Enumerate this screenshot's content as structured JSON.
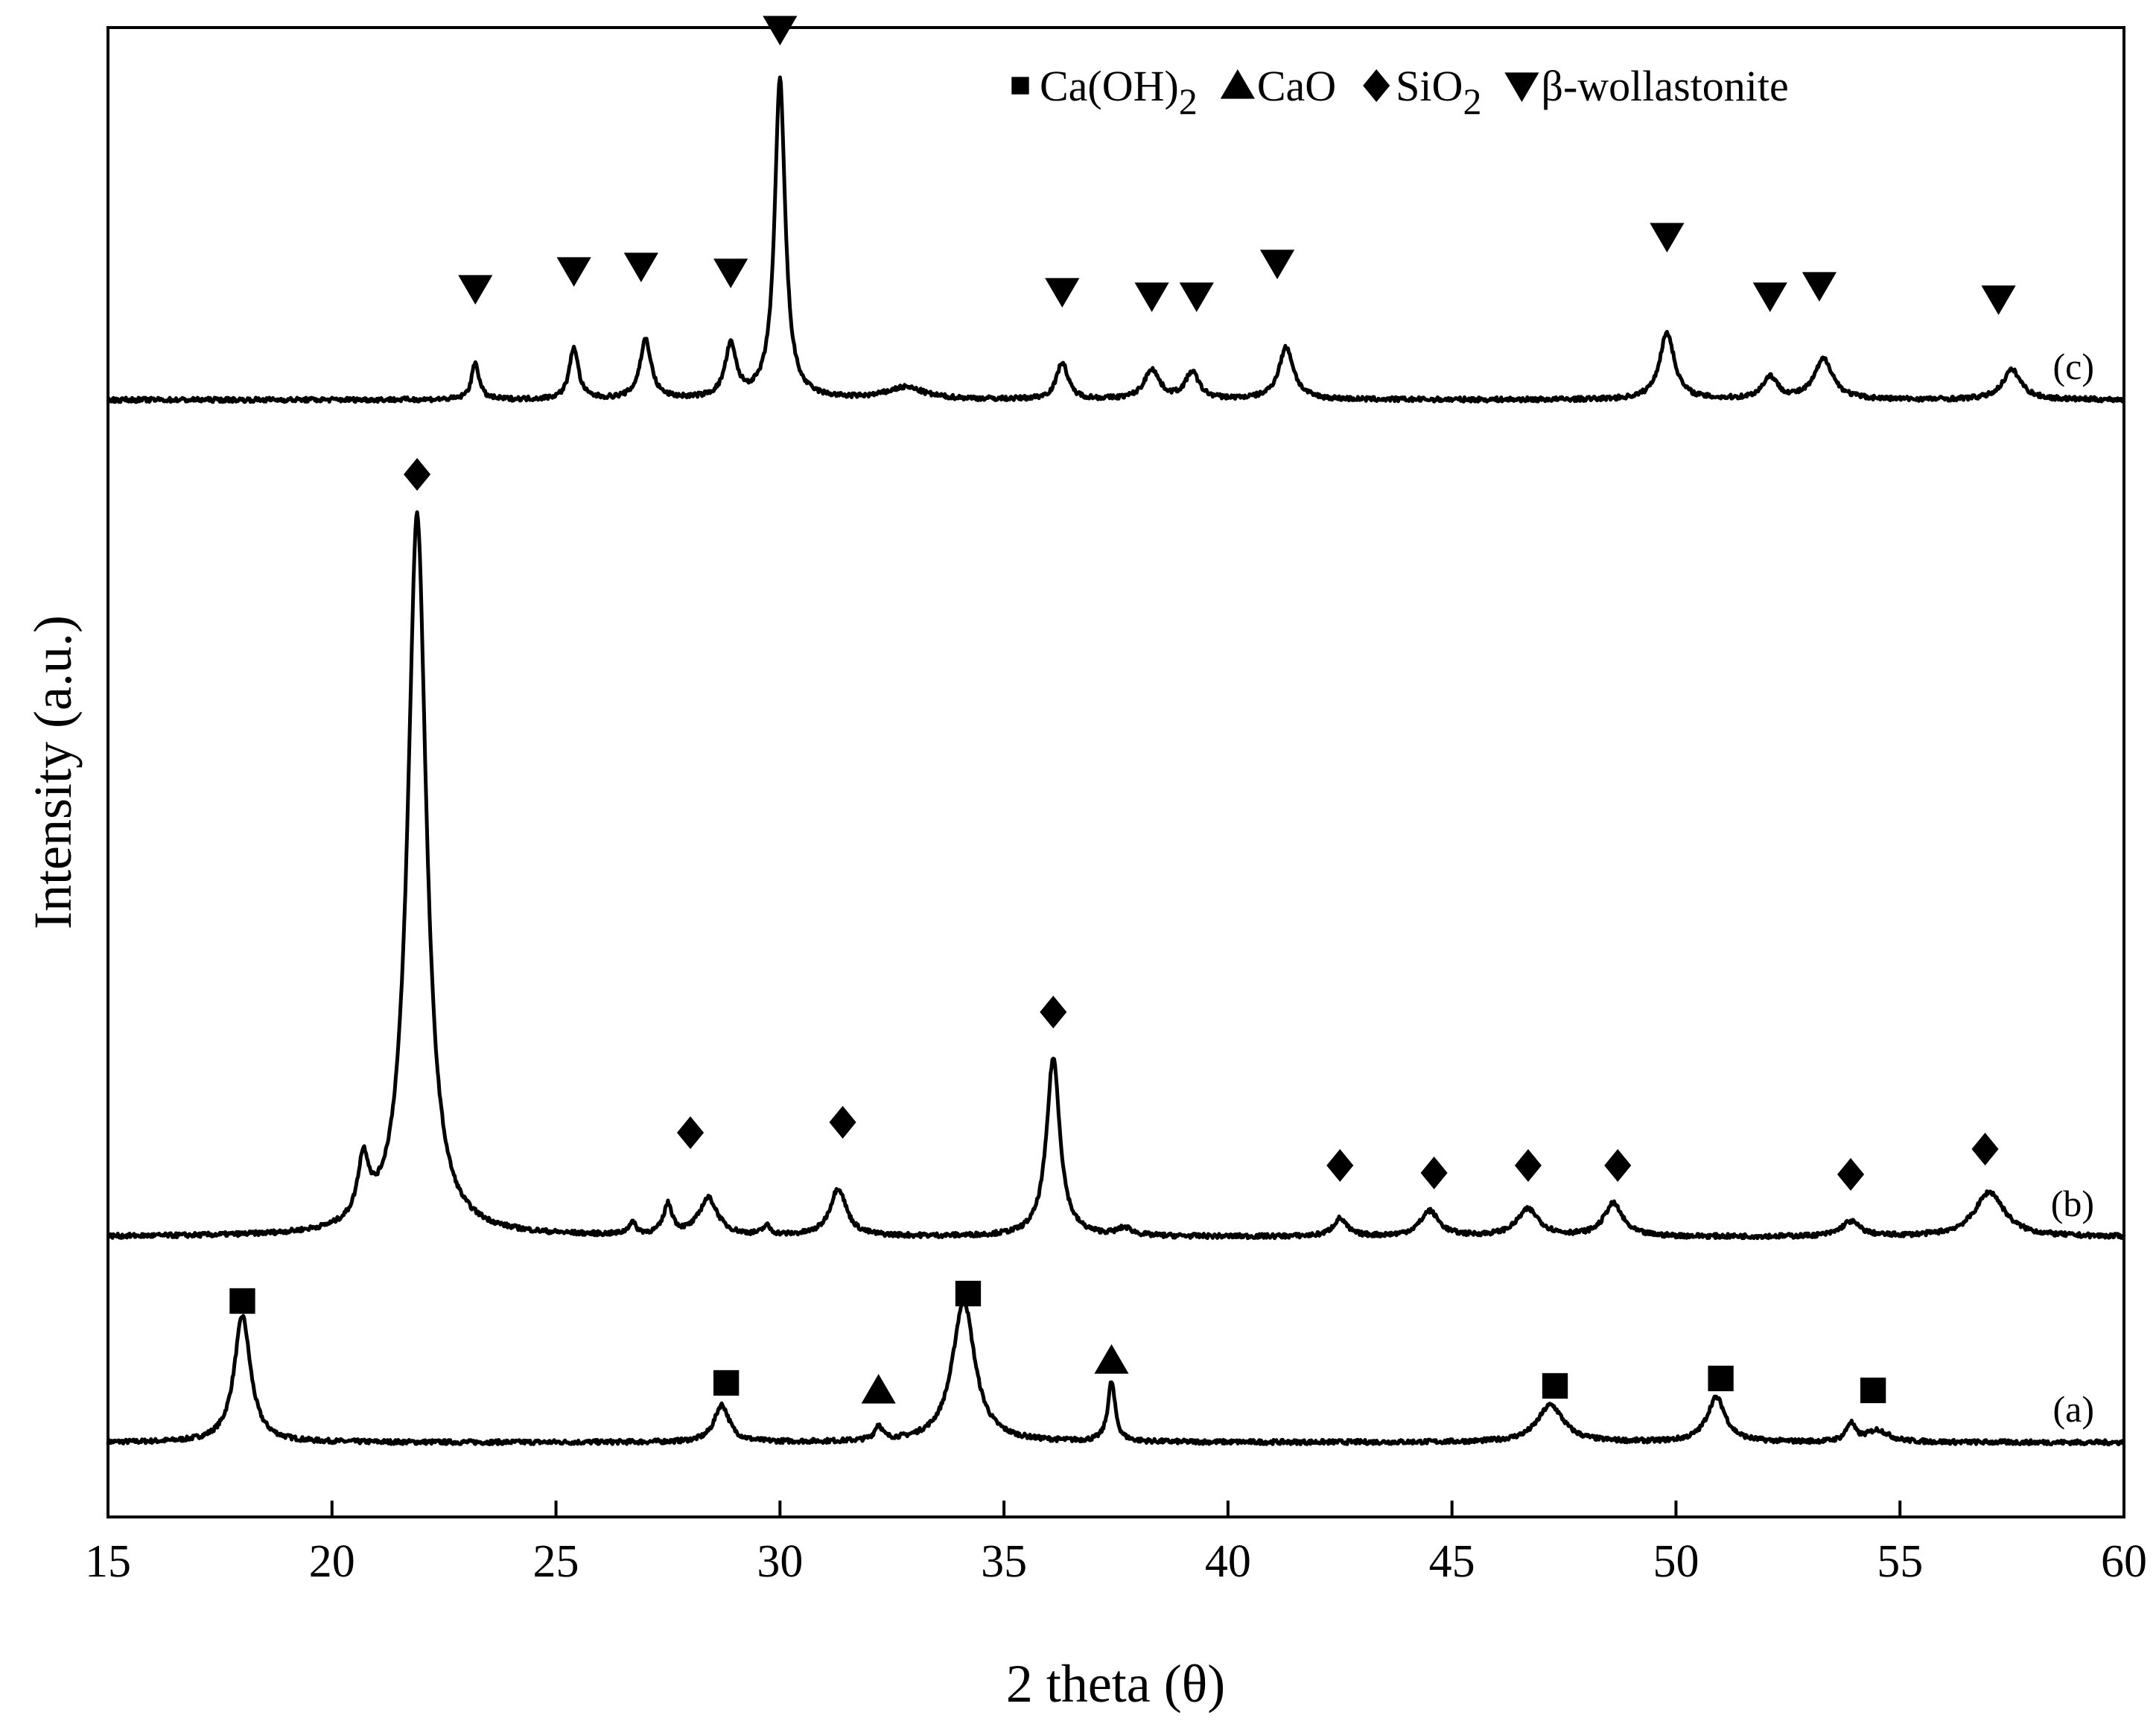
{
  "chart_data": {
    "type": "line",
    "title": "",
    "xlabel": "2 theta (θ)",
    "ylabel": "Intensity (a.u.)",
    "xlim": [
      15,
      60
    ],
    "x_ticks": [
      15,
      20,
      25,
      30,
      35,
      40,
      45,
      50,
      55,
      60
    ],
    "y_ticks": [],
    "grid": false,
    "legend": {
      "placement": "top-right",
      "entries": [
        {
          "marker": "square",
          "text": "Ca(OH)",
          "sub": "2"
        },
        {
          "marker": "triangle-up",
          "text": "CaO",
          "sub": ""
        },
        {
          "marker": "diamond",
          "text": "SiO",
          "sub": "2"
        },
        {
          "marker": "triangle-down",
          "text": "β-wollastonite",
          "sub": ""
        }
      ]
    },
    "series": [
      {
        "name": "(a)",
        "baseline": 0.05,
        "peaks": [
          {
            "x": 18.0,
            "h": 0.085,
            "w": 0.22
          },
          {
            "x": 28.7,
            "h": 0.025,
            "w": 0.2
          },
          {
            "x": 32.2,
            "h": 0.01,
            "w": 0.1
          },
          {
            "x": 34.1,
            "h": 0.095,
            "w": 0.3
          },
          {
            "x": 37.4,
            "h": 0.04,
            "w": 0.1
          },
          {
            "x": 47.2,
            "h": 0.025,
            "w": 0.35
          },
          {
            "x": 50.9,
            "h": 0.03,
            "w": 0.25
          },
          {
            "x": 53.9,
            "h": 0.012,
            "w": 0.12
          },
          {
            "x": 54.5,
            "h": 0.008,
            "w": 0.3
          }
        ],
        "markers": [
          {
            "x": 18.0,
            "y": 0.145,
            "shape": "square"
          },
          {
            "x": 28.8,
            "y": 0.09,
            "shape": "square"
          },
          {
            "x": 32.2,
            "y": 0.085,
            "shape": "triangle-up"
          },
          {
            "x": 34.2,
            "y": 0.15,
            "shape": "square"
          },
          {
            "x": 37.4,
            "y": 0.105,
            "shape": "triangle-up"
          },
          {
            "x": 47.3,
            "y": 0.088,
            "shape": "square"
          },
          {
            "x": 51.0,
            "y": 0.093,
            "shape": "square"
          },
          {
            "x": 54.4,
            "y": 0.085,
            "shape": "square"
          }
        ]
      },
      {
        "name": "(b)",
        "baseline": 0.188,
        "peaks": [
          {
            "x": 20.7,
            "h": 0.04,
            "w": 0.15
          },
          {
            "x": 21.9,
            "h": 0.485,
            "w": 0.25
          },
          {
            "x": 26.7,
            "h": 0.008,
            "w": 0.1
          },
          {
            "x": 27.5,
            "h": 0.02,
            "w": 0.12
          },
          {
            "x": 28.4,
            "h": 0.025,
            "w": 0.25
          },
          {
            "x": 29.7,
            "h": 0.006,
            "w": 0.1
          },
          {
            "x": 31.3,
            "h": 0.032,
            "w": 0.22
          },
          {
            "x": 36.1,
            "h": 0.12,
            "w": 0.18
          },
          {
            "x": 37.7,
            "h": 0.005,
            "w": 0.2
          },
          {
            "x": 42.5,
            "h": 0.012,
            "w": 0.18
          },
          {
            "x": 44.5,
            "h": 0.017,
            "w": 0.25
          },
          {
            "x": 46.7,
            "h": 0.018,
            "w": 0.3
          },
          {
            "x": 48.6,
            "h": 0.022,
            "w": 0.25
          },
          {
            "x": 53.9,
            "h": 0.01,
            "w": 0.25
          },
          {
            "x": 57.0,
            "h": 0.03,
            "w": 0.4
          }
        ],
        "markers": [
          {
            "x": 21.9,
            "y": 0.7,
            "shape": "diamond"
          },
          {
            "x": 28.0,
            "y": 0.258,
            "shape": "diamond"
          },
          {
            "x": 31.4,
            "y": 0.265,
            "shape": "diamond"
          },
          {
            "x": 36.1,
            "y": 0.339,
            "shape": "diamond"
          },
          {
            "x": 42.5,
            "y": 0.236,
            "shape": "diamond"
          },
          {
            "x": 44.6,
            "y": 0.231,
            "shape": "diamond"
          },
          {
            "x": 46.7,
            "y": 0.236,
            "shape": "diamond"
          },
          {
            "x": 48.7,
            "y": 0.236,
            "shape": "diamond"
          },
          {
            "x": 53.9,
            "y": 0.23,
            "shape": "diamond"
          },
          {
            "x": 56.9,
            "y": 0.247,
            "shape": "diamond"
          }
        ]
      },
      {
        "name": "(c)",
        "baseline": 0.75,
        "peaks": [
          {
            "x": 23.2,
            "h": 0.025,
            "w": 0.1
          },
          {
            "x": 25.4,
            "h": 0.035,
            "w": 0.12
          },
          {
            "x": 27.0,
            "h": 0.04,
            "w": 0.15
          },
          {
            "x": 28.9,
            "h": 0.035,
            "w": 0.15
          },
          {
            "x": 30.0,
            "h": 0.215,
            "w": 0.14
          },
          {
            "x": 32.8,
            "h": 0.008,
            "w": 0.5
          },
          {
            "x": 36.3,
            "h": 0.025,
            "w": 0.15
          },
          {
            "x": 38.3,
            "h": 0.02,
            "w": 0.2
          },
          {
            "x": 39.2,
            "h": 0.018,
            "w": 0.18
          },
          {
            "x": 41.3,
            "h": 0.035,
            "w": 0.2
          },
          {
            "x": 49.8,
            "h": 0.045,
            "w": 0.2
          },
          {
            "x": 52.1,
            "h": 0.015,
            "w": 0.2
          },
          {
            "x": 53.3,
            "h": 0.027,
            "w": 0.25
          },
          {
            "x": 57.5,
            "h": 0.02,
            "w": 0.25
          }
        ],
        "markers": [
          {
            "x": 23.2,
            "y": 0.825,
            "shape": "triangle-down"
          },
          {
            "x": 25.4,
            "y": 0.837,
            "shape": "triangle-down"
          },
          {
            "x": 26.9,
            "y": 0.84,
            "shape": "triangle-down"
          },
          {
            "x": 28.9,
            "y": 0.836,
            "shape": "triangle-down"
          },
          {
            "x": 30.0,
            "y": 0.999,
            "shape": "triangle-down"
          },
          {
            "x": 36.3,
            "y": 0.823,
            "shape": "triangle-down"
          },
          {
            "x": 38.3,
            "y": 0.82,
            "shape": "triangle-down"
          },
          {
            "x": 39.3,
            "y": 0.82,
            "shape": "triangle-down"
          },
          {
            "x": 41.1,
            "y": 0.842,
            "shape": "triangle-down"
          },
          {
            "x": 49.8,
            "y": 0.86,
            "shape": "triangle-down"
          },
          {
            "x": 52.1,
            "y": 0.82,
            "shape": "triangle-down"
          },
          {
            "x": 53.2,
            "y": 0.827,
            "shape": "triangle-down"
          },
          {
            "x": 57.2,
            "y": 0.818,
            "shape": "triangle-down"
          }
        ]
      }
    ]
  }
}
